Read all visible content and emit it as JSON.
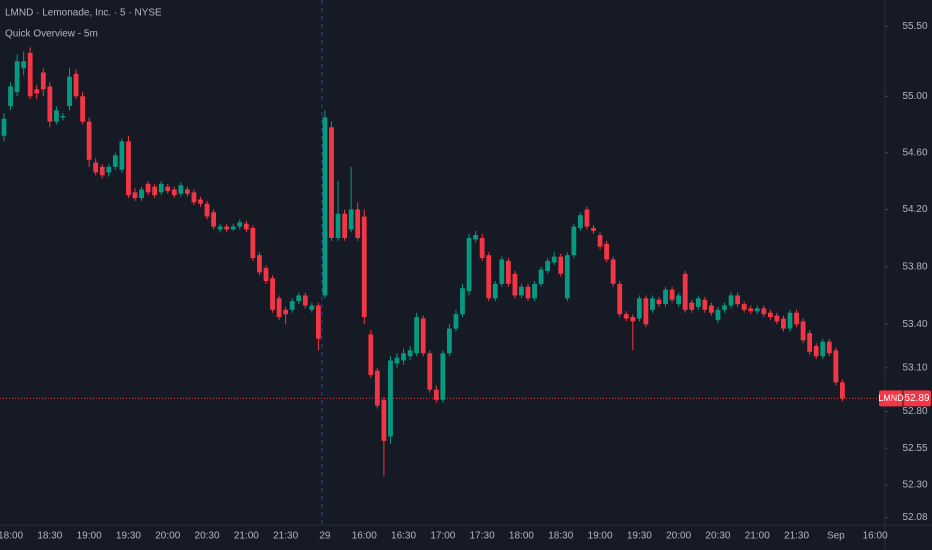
{
  "chart_data": {
    "type": "candlestick",
    "title": "LMND · Lemonade, Inc. · 5 · NYSE",
    "subtitle": "Quick Overview - 5m",
    "symbol": "LMND",
    "last_price": 52.89,
    "up_color": "#089981",
    "down_color": "#f23645",
    "log_scale": true,
    "ylim": [
      52.03,
      55.69
    ],
    "yticks": [
      {
        "value": 55.5,
        "label": "55.50"
      },
      {
        "value": 55,
        "label": "55.00"
      },
      {
        "value": 54.6,
        "label": "54.60"
      },
      {
        "value": 54.2,
        "label": "54.20"
      },
      {
        "value": 53.8,
        "label": "53.80"
      },
      {
        "value": 53.4,
        "label": "53.40"
      },
      {
        "value": 53.1,
        "label": "53.10"
      },
      {
        "value": 52.8,
        "label": "52.80"
      },
      {
        "value": 52.55,
        "label": "52.55"
      },
      {
        "value": 52.3,
        "label": "52.30"
      },
      {
        "value": 52.08,
        "label": "52.08"
      }
    ],
    "categories": [
      null,
      "18:00",
      null,
      null,
      null,
      null,
      null,
      "18:30",
      null,
      null,
      null,
      null,
      null,
      "19:00",
      null,
      null,
      null,
      null,
      null,
      "19:30",
      null,
      null,
      null,
      null,
      null,
      "20:00",
      null,
      null,
      null,
      null,
      null,
      "20:30",
      null,
      null,
      null,
      null,
      null,
      "21:00",
      null,
      null,
      null,
      null,
      null,
      "21:30",
      null,
      null,
      null,
      null,
      null,
      "29",
      null,
      null,
      null,
      null,
      null,
      "16:00",
      null,
      null,
      null,
      null,
      null,
      "16:30",
      null,
      null,
      null,
      null,
      null,
      "17:00",
      null,
      null,
      null,
      null,
      null,
      "17:30",
      null,
      null,
      null,
      null,
      null,
      "18:00",
      null,
      null,
      null,
      null,
      null,
      "18:30",
      null,
      null,
      null,
      null,
      null,
      "19:00",
      null,
      null,
      null,
      null,
      null,
      "19:30",
      null,
      null,
      null,
      null,
      null,
      "20:00",
      null,
      null,
      null,
      null,
      null,
      "20:30",
      null,
      null,
      null,
      null,
      null,
      "21:00",
      null,
      null,
      null,
      null,
      null,
      "21:30",
      null,
      null,
      null,
      null,
      null,
      "Sep",
      null,
      null,
      null,
      null,
      null,
      "16:00"
    ],
    "ohlc": [
      [
        54.72,
        54.88,
        54.68,
        54.84
      ],
      [
        54.93,
        55.1,
        54.9,
        55.07
      ],
      [
        55.03,
        55.3,
        55.0,
        55.25
      ],
      [
        55.2,
        55.32,
        55.15,
        55.25
      ],
      [
        55.31,
        55.35,
        54.98,
        55.0
      ],
      [
        55.05,
        55.08,
        54.98,
        55.02
      ],
      [
        55.17,
        55.2,
        55.0,
        55.05
      ],
      [
        55.07,
        55.1,
        54.78,
        54.82
      ],
      [
        54.82,
        54.93,
        54.8,
        54.9
      ],
      [
        54.85,
        54.88,
        54.83,
        54.86
      ],
      [
        54.93,
        55.2,
        54.9,
        55.14
      ],
      [
        55.16,
        55.19,
        54.98,
        55.0
      ],
      [
        55.0,
        55.03,
        54.8,
        54.82
      ],
      [
        54.82,
        54.85,
        54.5,
        54.55
      ],
      [
        54.53,
        54.56,
        54.44,
        54.46
      ],
      [
        54.5,
        54.52,
        54.42,
        54.44
      ],
      [
        54.46,
        54.52,
        54.43,
        54.5
      ],
      [
        54.5,
        54.6,
        54.48,
        54.58
      ],
      [
        54.48,
        54.7,
        54.46,
        54.68
      ],
      [
        54.68,
        54.72,
        54.28,
        54.3
      ],
      [
        54.32,
        54.35,
        54.26,
        54.28
      ],
      [
        54.28,
        54.36,
        54.26,
        54.34
      ],
      [
        54.38,
        54.4,
        54.3,
        54.32
      ],
      [
        54.36,
        54.38,
        54.28,
        54.3
      ],
      [
        54.32,
        54.4,
        54.3,
        54.38
      ],
      [
        54.36,
        54.38,
        54.31,
        54.33
      ],
      [
        54.34,
        54.36,
        54.28,
        54.3
      ],
      [
        54.31,
        54.39,
        54.29,
        54.37
      ],
      [
        54.34,
        54.36,
        54.29,
        54.31
      ],
      [
        54.32,
        54.34,
        54.23,
        54.25
      ],
      [
        54.27,
        54.29,
        54.22,
        54.24
      ],
      [
        54.24,
        54.26,
        54.13,
        54.15
      ],
      [
        54.18,
        54.2,
        54.06,
        54.08
      ],
      [
        54.06,
        54.1,
        54.04,
        54.08
      ],
      [
        54.08,
        54.1,
        54.04,
        54.06
      ],
      [
        54.06,
        54.1,
        54.05,
        54.08
      ],
      [
        54.08,
        54.13,
        54.06,
        54.11
      ],
      [
        54.1,
        54.12,
        54.04,
        54.06
      ],
      [
        54.07,
        54.09,
        53.84,
        53.86
      ],
      [
        53.88,
        53.9,
        53.74,
        53.76
      ],
      [
        53.79,
        53.81,
        53.68,
        53.7
      ],
      [
        53.72,
        53.74,
        53.48,
        53.5
      ],
      [
        53.58,
        53.6,
        53.43,
        53.45
      ],
      [
        53.5,
        53.52,
        53.4,
        53.47
      ],
      [
        53.5,
        53.58,
        53.48,
        53.56
      ],
      [
        53.56,
        53.62,
        53.54,
        53.6
      ],
      [
        53.6,
        53.62,
        53.51,
        53.53
      ],
      [
        53.5,
        53.55,
        53.48,
        53.53
      ],
      [
        53.53,
        53.55,
        53.22,
        53.3
      ],
      [
        53.6,
        54.9,
        53.58,
        54.85
      ],
      [
        54.78,
        54.82,
        53.98,
        54.0
      ],
      [
        54.0,
        54.4,
        53.98,
        54.17
      ],
      [
        54.17,
        54.2,
        53.98,
        54.0
      ],
      [
        54.06,
        54.5,
        54.04,
        54.2
      ],
      [
        54.2,
        54.25,
        53.98,
        54.0
      ],
      [
        54.15,
        54.2,
        53.4,
        53.45
      ],
      [
        53.33,
        53.36,
        53.03,
        53.05
      ],
      [
        53.08,
        53.1,
        52.82,
        52.84
      ],
      [
        52.88,
        52.9,
        52.36,
        52.6
      ],
      [
        52.63,
        53.18,
        52.58,
        53.15
      ],
      [
        53.13,
        53.2,
        53.1,
        53.17
      ],
      [
        53.15,
        53.23,
        53.12,
        53.2
      ],
      [
        53.18,
        53.25,
        53.15,
        53.22
      ],
      [
        53.2,
        53.48,
        53.18,
        53.45
      ],
      [
        53.44,
        53.46,
        53.18,
        53.2
      ],
      [
        53.2,
        53.22,
        52.93,
        52.95
      ],
      [
        52.95,
        52.98,
        52.86,
        52.88
      ],
      [
        52.88,
        53.22,
        52.86,
        53.2
      ],
      [
        53.2,
        53.4,
        53.18,
        53.37
      ],
      [
        53.37,
        53.5,
        53.35,
        53.47
      ],
      [
        53.47,
        53.68,
        53.45,
        53.65
      ],
      [
        53.63,
        54.03,
        53.6,
        54.0
      ],
      [
        53.99,
        54.05,
        53.97,
        54.02
      ],
      [
        54.0,
        54.03,
        53.84,
        53.86
      ],
      [
        53.88,
        53.9,
        53.56,
        53.58
      ],
      [
        53.58,
        53.7,
        53.56,
        53.68
      ],
      [
        53.68,
        53.87,
        53.66,
        53.85
      ],
      [
        53.84,
        53.86,
        53.66,
        53.68
      ],
      [
        53.75,
        53.77,
        53.58,
        53.6
      ],
      [
        53.6,
        53.68,
        53.58,
        53.66
      ],
      [
        53.66,
        53.68,
        53.56,
        53.58
      ],
      [
        53.58,
        53.7,
        53.56,
        53.68
      ],
      [
        53.68,
        53.8,
        53.66,
        53.78
      ],
      [
        53.77,
        53.86,
        53.75,
        53.84
      ],
      [
        53.83,
        53.9,
        53.81,
        53.87
      ],
      [
        53.87,
        53.89,
        53.73,
        53.75
      ],
      [
        53.58,
        53.9,
        53.56,
        53.88
      ],
      [
        53.88,
        54.1,
        53.86,
        54.08
      ],
      [
        54.07,
        54.18,
        54.05,
        54.16
      ],
      [
        54.2,
        54.22,
        54.06,
        54.08
      ],
      [
        54.07,
        54.09,
        54.03,
        54.05
      ],
      [
        54.02,
        54.04,
        53.92,
        53.94
      ],
      [
        53.96,
        53.98,
        53.83,
        53.85
      ],
      [
        53.85,
        53.87,
        53.66,
        53.68
      ],
      [
        53.68,
        53.7,
        53.45,
        53.47
      ],
      [
        53.47,
        53.49,
        53.42,
        53.44
      ],
      [
        53.45,
        53.47,
        53.22,
        53.42
      ],
      [
        53.44,
        53.6,
        53.42,
        53.58
      ],
      [
        53.58,
        53.6,
        53.38,
        53.4
      ],
      [
        53.5,
        53.6,
        53.48,
        53.58
      ],
      [
        53.57,
        53.59,
        53.52,
        53.54
      ],
      [
        53.54,
        53.66,
        53.52,
        53.64
      ],
      [
        53.64,
        53.66,
        53.55,
        53.57
      ],
      [
        53.54,
        53.62,
        53.52,
        53.6
      ],
      [
        53.75,
        53.77,
        53.48,
        53.5
      ],
      [
        53.55,
        53.57,
        53.48,
        53.5
      ],
      [
        53.52,
        53.6,
        53.5,
        53.58
      ],
      [
        53.57,
        53.59,
        53.48,
        53.5
      ],
      [
        53.53,
        53.55,
        53.46,
        53.48
      ],
      [
        53.43,
        53.52,
        53.41,
        53.5
      ],
      [
        53.5,
        53.55,
        53.48,
        53.53
      ],
      [
        53.53,
        53.62,
        53.51,
        53.6
      ],
      [
        53.6,
        53.62,
        53.52,
        53.54
      ],
      [
        53.54,
        53.56,
        53.48,
        53.5
      ],
      [
        53.51,
        53.53,
        53.47,
        53.49
      ],
      [
        53.49,
        53.53,
        53.47,
        53.51
      ],
      [
        53.51,
        53.53,
        53.45,
        53.47
      ],
      [
        53.48,
        53.5,
        53.43,
        53.45
      ],
      [
        53.46,
        53.48,
        53.4,
        53.42
      ],
      [
        53.44,
        53.46,
        53.35,
        53.37
      ],
      [
        53.37,
        53.5,
        53.35,
        53.48
      ],
      [
        53.48,
        53.5,
        53.38,
        53.4
      ],
      [
        53.42,
        53.44,
        53.27,
        53.29
      ],
      [
        53.34,
        53.36,
        53.19,
        53.21
      ],
      [
        53.25,
        53.27,
        53.16,
        53.18
      ],
      [
        53.18,
        53.3,
        53.16,
        53.28
      ],
      [
        53.28,
        53.3,
        53.18,
        53.2
      ],
      [
        53.22,
        53.24,
        52.98,
        53.0
      ],
      [
        53.0,
        53.02,
        52.87,
        52.89
      ],
      null,
      null,
      null,
      null,
      null
    ]
  }
}
